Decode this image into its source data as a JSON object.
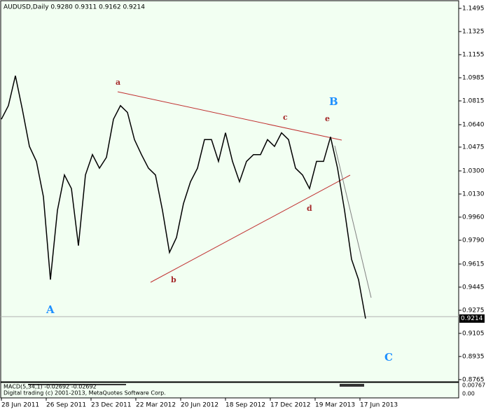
{
  "chart_data": {
    "type": "line",
    "title": "AUDUSD,Daily  0.9280 0.9311 0.9162 0.9214",
    "color": "#000000",
    "values": [
      1.068,
      1.078,
      1.1,
      1.075,
      1.048,
      1.037,
      1.011,
      0.95,
      1.001,
      1.027,
      1.017,
      0.975,
      1.027,
      1.042,
      1.032,
      1.04,
      1.068,
      1.078,
      1.073,
      1.053,
      1.042,
      1.032,
      1.027,
      1.001,
      0.97,
      0.981,
      1.006,
      1.022,
      1.032,
      1.053,
      1.053,
      1.037,
      1.058,
      1.037,
      1.022,
      1.037,
      1.042,
      1.042,
      1.053,
      1.048,
      1.058,
      1.053,
      1.032,
      1.027,
      1.017,
      1.037,
      1.037,
      1.055,
      1.032,
      1.001,
      0.965,
      0.95,
      0.9214
    ],
    "ylim": [
      0.8749,
      1.1557
    ],
    "yticks": [
      1.1495,
      1.1325,
      1.1155,
      1.0985,
      1.0815,
      {
        "value": 1.064,
        "label": "1.0640"
      },
      1.0475,
      {
        "value": 1.03,
        "label": "1.0300"
      },
      {
        "value": 1.013,
        "label": "1.0130"
      },
      {
        "value": 0.996,
        "label": "0.9960"
      },
      {
        "value": 0.979,
        "label": "0.9790"
      },
      0.9615,
      0.9445,
      0.9275,
      0.9105,
      0.8935,
      0.8765
    ],
    "xticks": [
      "28 Jun 2011",
      "26 Sep 2011",
      "23 Dec 2011",
      "22 Mar 2012",
      "20 Jun 2012",
      "18 Sep 2012",
      "17 Dec 2012",
      "19 Mar 2013",
      "17 Jun 2013"
    ],
    "last_price": {
      "value": 0.9214,
      "label": "0.9214"
    },
    "wave_labels": [
      {
        "text": "a",
        "color": "#a52a2a"
      },
      {
        "text": "b",
        "color": "#a52a2a"
      },
      {
        "text": "c",
        "color": "#a52a2a"
      },
      {
        "text": "d",
        "color": "#a52a2a"
      },
      {
        "text": "e",
        "color": "#a52a2a"
      },
      {
        "text": "A",
        "color": "#1e90ff"
      },
      {
        "text": "B",
        "color": "#1e90ff"
      },
      {
        "text": "C",
        "color": "#1e90ff"
      }
    ],
    "macd_label": "MACD(5,34,1) -0.02692 -0.02692",
    "copyright": "Digital trading (c) 2001-2013, MetaQuotes Software Corp.",
    "macd_ticks": [
      "0.00767",
      "0.00"
    ]
  }
}
